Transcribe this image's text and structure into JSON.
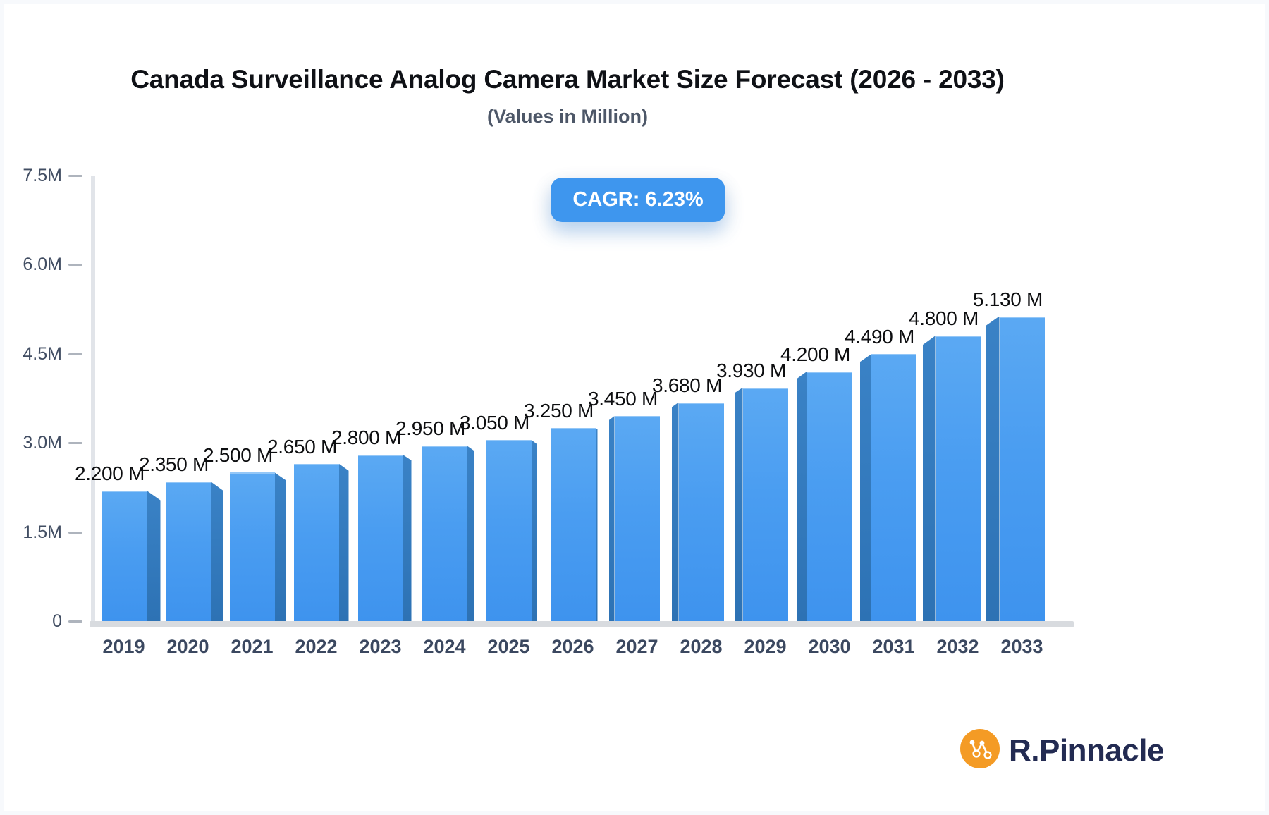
{
  "header": {
    "title": "Canada Surveillance Analog Camera Market Size Forecast (2026 - 2033)",
    "subtitle": "(Values in Million)",
    "cagr_badge": "CAGR: 6.23%"
  },
  "chart_data": {
    "type": "bar",
    "title": "Canada Surveillance Analog Camera Market Size Forecast (2026 - 2033)",
    "subtitle": "(Values in Million)",
    "unit": "Million",
    "categories": [
      "2019",
      "2020",
      "2021",
      "2022",
      "2023",
      "2024",
      "2025",
      "2026",
      "2027",
      "2028",
      "2029",
      "2030",
      "2031",
      "2032",
      "2033"
    ],
    "values": [
      2.2,
      2.35,
      2.5,
      2.65,
      2.8,
      2.95,
      3.05,
      3.25,
      3.45,
      3.68,
      3.93,
      4.2,
      4.49,
      4.8,
      5.13
    ],
    "value_labels": [
      "2.200 M",
      "2.350 M",
      "2.500 M",
      "2.650 M",
      "2.800 M",
      "2.950 M",
      "3.050 M",
      "3.250 M",
      "3.450 M",
      "3.680 M",
      "3.930 M",
      "4.200 M",
      "4.490 M",
      "4.800 M",
      "5.130 M"
    ],
    "xlabel": "",
    "ylabel": "",
    "ylim": [
      0,
      7.5
    ],
    "y_ticks": [
      "7.5M",
      "6.0M",
      "4.5M",
      "3.0M",
      "1.5M",
      "0"
    ],
    "y_tick_values": [
      7.5,
      6.0,
      4.5,
      3.0,
      1.5,
      0
    ],
    "grid": false,
    "legend": false,
    "bar_style": "3d",
    "colors": {
      "bar_front": "#4a9df1",
      "bar_side": "#2d72b4",
      "badge_background": "#3e96ee",
      "axis_line": "#e1e4e9",
      "baseline": "#d8dbdf",
      "tick_text": "#424e63",
      "x_label_text": "#3b4860",
      "value_label_text": "#0d0e10"
    }
  },
  "branding": {
    "logo_text": "R.Pinnacle",
    "logo_icon": "network-nodes-icon",
    "logo_icon_color": "#f49b25",
    "logo_text_color": "#232b52"
  }
}
